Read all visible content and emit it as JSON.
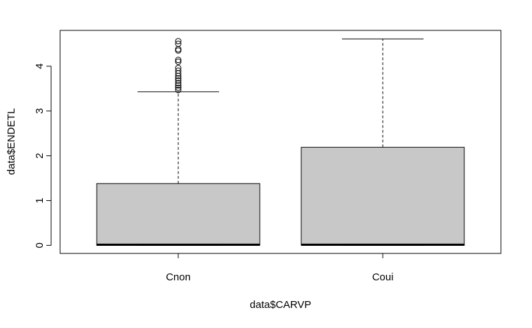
{
  "chart_data": {
    "type": "boxplot",
    "title": "",
    "xlabel": "data$CARVP",
    "ylabel": "data$ENDETL",
    "categories": [
      "Cnon",
      "Coui"
    ],
    "ylim": [
      -0.18,
      4.8
    ],
    "yticks": [
      0,
      1,
      2,
      3,
      4
    ],
    "grid": false,
    "legend": "none",
    "box_fill": "#c8c8c8",
    "boxes": [
      {
        "category": "Cnon",
        "min": 0,
        "q1": 0,
        "median": 0,
        "q3": 1.38,
        "whisker_high": 3.43,
        "outliers": [
          3.47,
          3.52,
          3.57,
          3.62,
          3.68,
          3.73,
          3.78,
          3.84,
          3.9,
          3.96,
          4.1,
          4.14,
          4.35,
          4.38,
          4.5,
          4.56
        ]
      },
      {
        "category": "Coui",
        "min": 0,
        "q1": 0,
        "median": 0,
        "q3": 2.19,
        "whisker_high": 4.61,
        "outliers": []
      }
    ]
  }
}
